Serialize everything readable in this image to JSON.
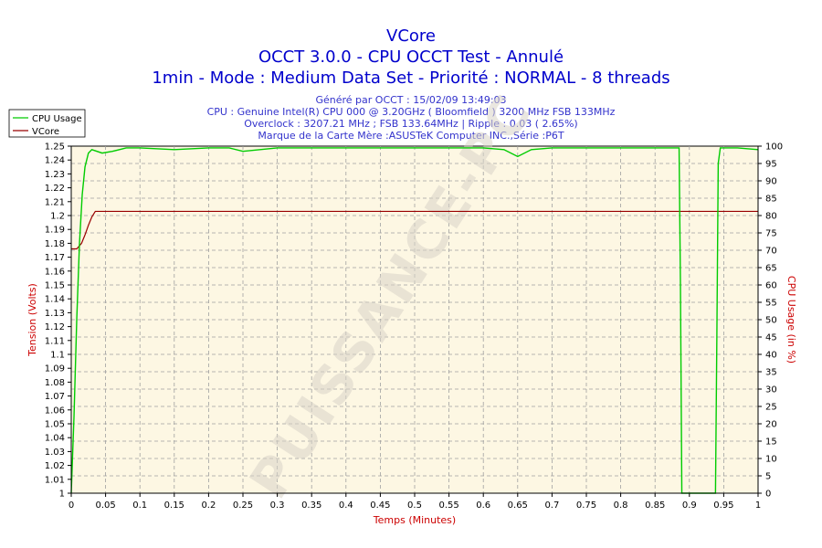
{
  "titles": {
    "line1": "VCore",
    "line2": "OCCT 3.0.0 - CPU OCCT Test - Annulé",
    "line3": "1min - Mode : Medium Data Set - Priorité : NORMAL - 8 threads"
  },
  "info_lines": [
    "Généré par OCCT : 15/02/09 13:49:03",
    "CPU : Genuine Intel(R) CPU 000 @ 3.20GHz ( Bloomfield ) 3200 MHz FSB 133MHz",
    "Overclock : 3207.21 MHz ; FSB 133.64MHz | Ripple : 0.03 ( 2.65%)",
    "Marque de la Carte Mère :ASUSTeK Computer INC.,Série :P6T"
  ],
  "watermark": "PUISSANCE-PC",
  "colors": {
    "background": "#ffffff",
    "plot_background": "#fdf7e3",
    "cpu_usage": "#00cc00",
    "vcore": "#990000",
    "title": "#0000cc",
    "info": "#3333cc",
    "axis_title": "#cc0000"
  },
  "chart_data": {
    "type": "line",
    "xlabel": "Temps (Minutes)",
    "ylabel_left": "Tension (Volts)",
    "ylabel_right": "CPU Usage (in %)",
    "xlim": [
      0,
      1
    ],
    "ylim_left": [
      1.0,
      1.25
    ],
    "ylim_right": [
      0,
      100
    ],
    "grid": true,
    "legend_position": "top-left",
    "x_ticks": [
      "0",
      "0.05",
      "0.1",
      "0.15",
      "0.2",
      "0.25",
      "0.3",
      "0.35",
      "0.4",
      "0.45",
      "0.5",
      "0.55",
      "0.6",
      "0.65",
      "0.7",
      "0.75",
      "0.8",
      "0.85",
      "0.9",
      "0.95",
      "1"
    ],
    "y_left_ticks": [
      "1",
      "1.01",
      "1.02",
      "1.03",
      "1.04",
      "1.05",
      "1.06",
      "1.07",
      "1.08",
      "1.09",
      "1.1",
      "1.11",
      "1.12",
      "1.13",
      "1.14",
      "1.15",
      "1.16",
      "1.17",
      "1.18",
      "1.19",
      "1.2",
      "1.21",
      "1.22",
      "1.23",
      "1.24",
      "1.25"
    ],
    "y_right_ticks": [
      "0",
      "5",
      "10",
      "15",
      "20",
      "25",
      "30",
      "35",
      "40",
      "45",
      "50",
      "55",
      "60",
      "65",
      "70",
      "75",
      "80",
      "85",
      "90",
      "95",
      "100"
    ],
    "series": [
      {
        "name": "CPU Usage",
        "axis": "right",
        "x": [
          0,
          0.004,
          0.008,
          0.012,
          0.016,
          0.02,
          0.025,
          0.03,
          0.045,
          0.06,
          0.08,
          0.1,
          0.15,
          0.2,
          0.23,
          0.25,
          0.3,
          0.35,
          0.4,
          0.45,
          0.5,
          0.55,
          0.6,
          0.63,
          0.65,
          0.67,
          0.7,
          0.75,
          0.8,
          0.85,
          0.885,
          0.887,
          0.889,
          0.891,
          0.938,
          0.94,
          0.942,
          0.945,
          0.955,
          0.97,
          1.0
        ],
        "y": [
          0,
          22,
          50,
          72,
          86,
          94,
          98,
          99,
          98,
          98.5,
          99.5,
          99.5,
          99,
          99.5,
          99.5,
          98.5,
          99.5,
          99.5,
          99.5,
          99.5,
          99.5,
          99.5,
          99.5,
          99,
          97,
          99,
          99.5,
          99.5,
          99.5,
          99.5,
          99.5,
          60,
          0,
          0,
          0,
          45,
          95,
          99.5,
          99.5,
          99.5,
          99
        ]
      },
      {
        "name": "VCore",
        "axis": "left",
        "x": [
          0,
          0.008,
          0.015,
          0.02,
          0.025,
          0.03,
          0.035,
          0.04,
          0.1,
          0.5,
          1.0
        ],
        "y": [
          1.176,
          1.176,
          1.18,
          1.186,
          1.193,
          1.199,
          1.203,
          1.203,
          1.203,
          1.203,
          1.203
        ]
      }
    ]
  }
}
